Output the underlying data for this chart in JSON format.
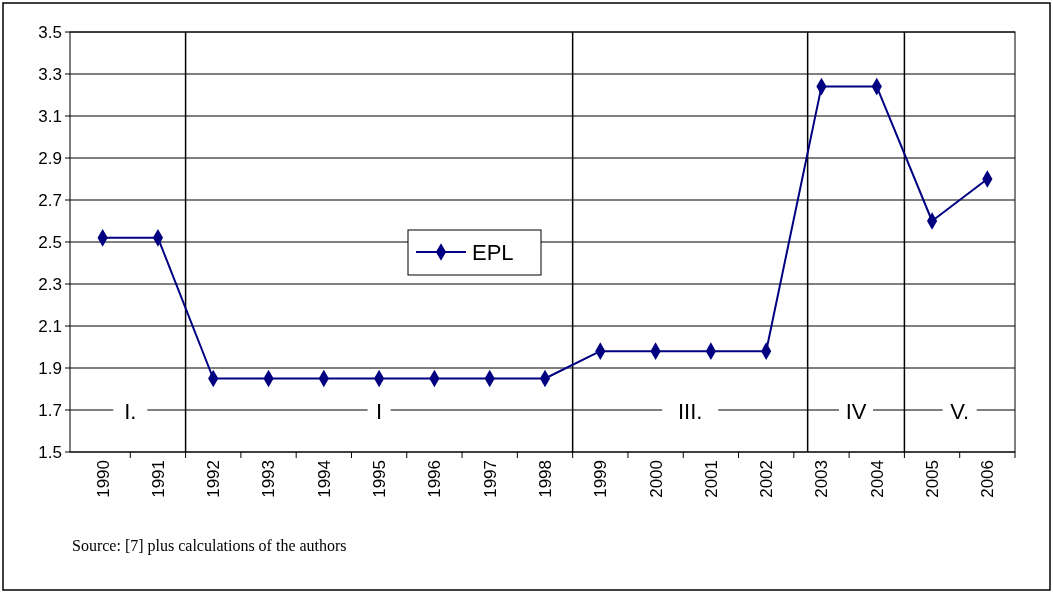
{
  "chart_data": {
    "type": "line",
    "x": [
      1990,
      1991,
      1992,
      1993,
      1994,
      1995,
      1996,
      1997,
      1998,
      1999,
      2000,
      2001,
      2002,
      2003,
      2004,
      2005,
      2006
    ],
    "series": [
      {
        "name": "EPL",
        "color": "#000080",
        "values": [
          2.52,
          2.52,
          1.85,
          1.85,
          1.85,
          1.85,
          1.85,
          1.85,
          1.85,
          1.98,
          1.98,
          1.98,
          1.98,
          3.24,
          3.24,
          2.6,
          2.8
        ]
      }
    ],
    "xlim": [
      1989.5,
      2006.5
    ],
    "xticks": [
      1990,
      1991,
      1992,
      1993,
      1994,
      1995,
      1996,
      1997,
      1998,
      1999,
      2000,
      2001,
      2002,
      2003,
      2004,
      2005,
      2006
    ],
    "ylim": [
      1.5,
      3.5
    ],
    "yticks": [
      1.5,
      1.7,
      1.9,
      2.1,
      2.3,
      2.5,
      2.7,
      2.9,
      3.1,
      3.3,
      3.5
    ],
    "grid": "y",
    "legend": "center",
    "marker": "diamond",
    "line_style": "solid",
    "ref_lines": [
      {
        "axis": "x",
        "value": 1991.5,
        "color": "#000000"
      },
      {
        "axis": "x",
        "value": 1998.5,
        "color": "#000000"
      },
      {
        "axis": "x",
        "value": 2002.75,
        "color": "#000000"
      },
      {
        "axis": "x",
        "value": 2004.5,
        "color": "#000000"
      }
    ],
    "annotations": [
      "I.",
      "I",
      "III.",
      "IV",
      "V.",
      "Source: [7] plus calculations of the authors"
    ]
  }
}
